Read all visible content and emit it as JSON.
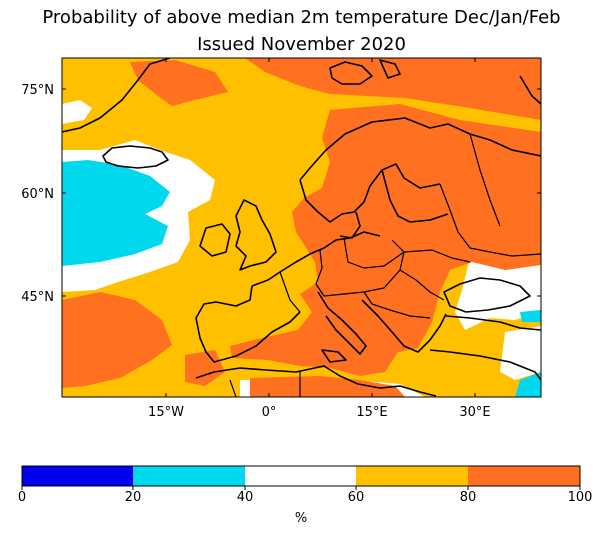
{
  "title_line1": "Probability of above median 2m temperature Dec/Jan/Feb",
  "title_line2": "Issued November 2020",
  "map": {
    "lat_ticks": [
      "75°N",
      "60°N",
      "45°N"
    ],
    "lon_ticks": [
      "15°W",
      "0°",
      "15°E",
      "30°E"
    ]
  },
  "colorbar": {
    "ticks": [
      "0",
      "20",
      "40",
      "60",
      "80",
      "100"
    ],
    "unit": "%",
    "bins": [
      {
        "range": "0-20",
        "color": "#0000ee"
      },
      {
        "range": "20-40",
        "color": "#00d8ee"
      },
      {
        "range": "40-60",
        "color": "#ffffff"
      },
      {
        "range": "60-80",
        "color": "#ffc000"
      },
      {
        "range": "80-100",
        "color": "#ff7020"
      }
    ]
  },
  "colors": {
    "orange": "#ff7020",
    "yellow": "#ffc000",
    "cyan": "#00d8ee",
    "blue": "#0000ee",
    "white": "#ffffff"
  }
}
